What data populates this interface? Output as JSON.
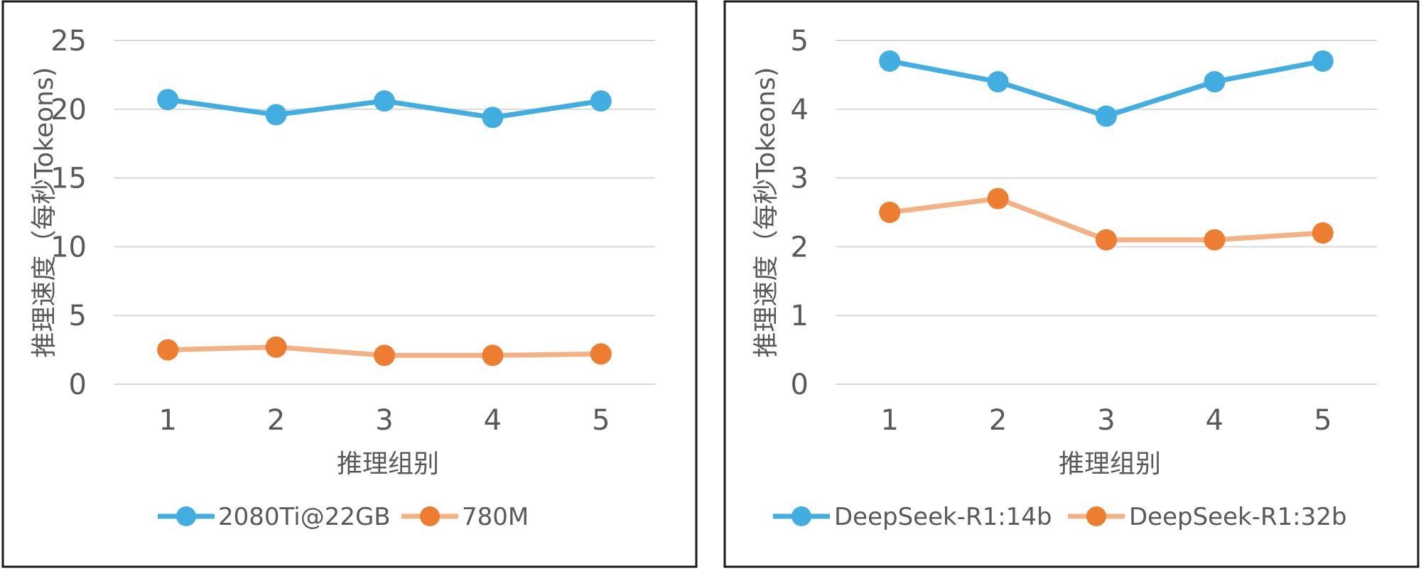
{
  "chart_data": [
    {
      "type": "line",
      "categories": [
        "1",
        "2",
        "3",
        "4",
        "5"
      ],
      "series": [
        {
          "name": "2080Ti@22GB",
          "color": "#41ADE1",
          "values": [
            20.7,
            19.6,
            20.6,
            19.4,
            20.6
          ]
        },
        {
          "name": "780M",
          "color": "#ED7D31",
          "line_color": "#F4B183",
          "values": [
            2.5,
            2.7,
            2.1,
            2.1,
            2.2
          ]
        }
      ],
      "ylim": [
        0,
        25
      ],
      "yticks": [
        "0",
        "5",
        "10",
        "15",
        "20",
        "25"
      ],
      "xlabel": "推理组别",
      "ylabel": "推理速度（每秒Tokeons)",
      "grid": true,
      "legend": "bottom"
    },
    {
      "type": "line",
      "categories": [
        "1",
        "2",
        "3",
        "4",
        "5"
      ],
      "series": [
        {
          "name": "DeepSeek-R1:14b",
          "color": "#41ADE1",
          "values": [
            4.7,
            4.4,
            3.9,
            4.4,
            4.7
          ]
        },
        {
          "name": "DeepSeek-R1:32b",
          "color": "#ED7D31",
          "line_color": "#F4B183",
          "values": [
            2.5,
            2.7,
            2.1,
            2.1,
            2.2
          ]
        }
      ],
      "ylim": [
        0,
        5
      ],
      "yticks": [
        "0",
        "1",
        "2",
        "3",
        "4",
        "5"
      ],
      "xlabel": "推理组别",
      "ylabel": "推理速度（每秒Tokeons)",
      "grid": true,
      "legend": "bottom"
    }
  ]
}
